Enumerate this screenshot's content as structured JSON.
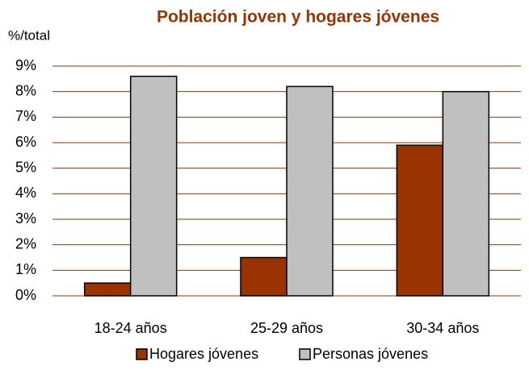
{
  "chart_data": {
    "type": "bar",
    "title": "Población joven y hogares jóvenes",
    "y_axis_label": "%/total",
    "categories": [
      "18-24 años",
      "25-29 años",
      "30-34 años"
    ],
    "series": [
      {
        "name": "Hogares jóvenes",
        "color": "#993300",
        "values": [
          0.5,
          1.5,
          5.9
        ]
      },
      {
        "name": "Personas jóvenes",
        "color": "#c0c0c0",
        "values": [
          8.6,
          8.2,
          8.0
        ]
      }
    ],
    "ylim": [
      0,
      9
    ],
    "yticks": [
      {
        "value": 0,
        "label": "0%"
      },
      {
        "value": 1,
        "label": "1%"
      },
      {
        "value": 2,
        "label": "2%"
      },
      {
        "value": 3,
        "label": "3%"
      },
      {
        "value": 4,
        "label": "4%"
      },
      {
        "value": 5,
        "label": "5%"
      },
      {
        "value": 6,
        "label": "6%"
      },
      {
        "value": 7,
        "label": "7%"
      },
      {
        "value": 8,
        "label": "8%"
      },
      {
        "value": 9,
        "label": "9%"
      }
    ],
    "grid": true,
    "legend": "bottom"
  }
}
